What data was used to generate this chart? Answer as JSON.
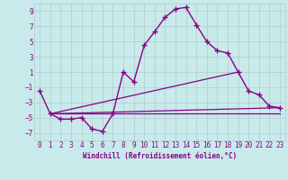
{
  "xlabel": "Windchill (Refroidissement éolien,°C)",
  "xlim": [
    -0.5,
    23.5
  ],
  "ylim": [
    -8,
    10
  ],
  "yticks": [
    -7,
    -5,
    -3,
    -1,
    1,
    3,
    5,
    7,
    9
  ],
  "xticks": [
    0,
    1,
    2,
    3,
    4,
    5,
    6,
    7,
    8,
    9,
    10,
    11,
    12,
    13,
    14,
    15,
    16,
    17,
    18,
    19,
    20,
    21,
    22,
    23
  ],
  "background_color": "#c8eaea",
  "grid_color": "#b0cccc",
  "line_color": "#880088",
  "series": [
    {
      "x": [
        0,
        1,
        2,
        3,
        4,
        5,
        6,
        7,
        8,
        9,
        10,
        11,
        12,
        13,
        14,
        15,
        16,
        17,
        18,
        19,
        20,
        21,
        22,
        23
      ],
      "y": [
        -1.5,
        -4.5,
        -5.2,
        -5.2,
        -5.0,
        -6.5,
        -6.8,
        -4.5,
        1.0,
        -0.3,
        4.5,
        6.3,
        8.2,
        9.3,
        9.5,
        7.2,
        5.0,
        3.8,
        3.5,
        1.0,
        -1.5,
        -2.0,
        -3.5,
        -3.7
      ],
      "marker": "+",
      "markersize": 4,
      "linewidth": 1.0,
      "linestyle": "-"
    },
    {
      "x": [
        1,
        23
      ],
      "y": [
        -4.5,
        -3.7
      ],
      "marker": null,
      "linewidth": 0.9,
      "linestyle": "-"
    },
    {
      "x": [
        1,
        23
      ],
      "y": [
        -4.5,
        -4.5
      ],
      "marker": null,
      "linewidth": 0.9,
      "linestyle": "-"
    },
    {
      "x": [
        1,
        19
      ],
      "y": [
        -4.5,
        1.0
      ],
      "marker": null,
      "linewidth": 0.9,
      "linestyle": "-"
    }
  ]
}
